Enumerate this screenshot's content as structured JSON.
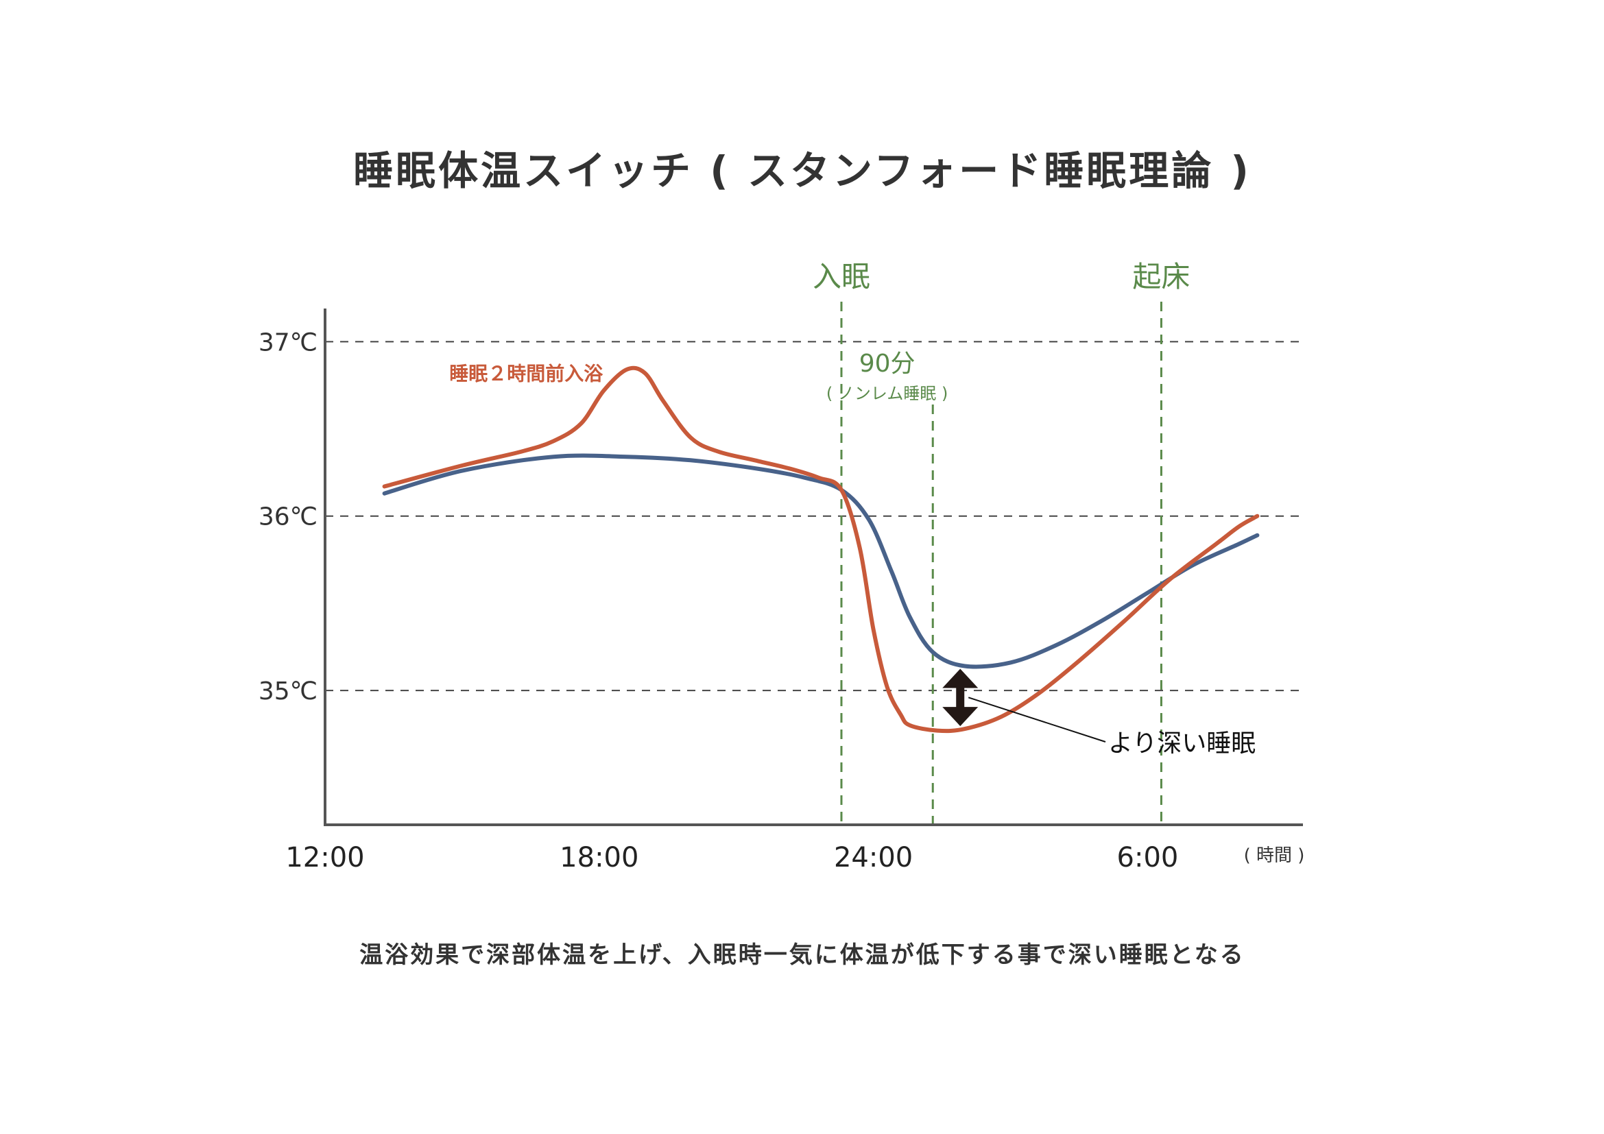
{
  "title": "睡眠体温スイッチ ( スタンフォード睡眠理論 )",
  "caption": "温浴効果で深部体温を上げ、入眠時一気に体温が低下する事で深い睡眠となる",
  "colors": {
    "baseline": "#48628a",
    "bath": "#c85a3a",
    "marker": "#5a8a4a",
    "axis": "#555555",
    "grid": "#444444",
    "arrow": "#231815"
  },
  "chart_data": {
    "type": "line",
    "x_unit": "( 時間 )",
    "x_ticks": [
      {
        "hour": 12,
        "label": "12:00"
      },
      {
        "hour": 18,
        "label": "18:00"
      },
      {
        "hour": 24,
        "label": "24:00"
      },
      {
        "hour": 30,
        "label": "6:00"
      }
    ],
    "y_ticks": [
      {
        "value": 35,
        "label": "35℃"
      },
      {
        "value": 36,
        "label": "36℃"
      },
      {
        "value": 37,
        "label": "37℃"
      }
    ],
    "xlim": [
      12,
      33.4
    ],
    "ylim": [
      34.23,
      37.19
    ],
    "grid": "horizontal dashed",
    "series": [
      {
        "key": "baseline",
        "name": "",
        "points": [
          [
            13.3,
            36.13
          ],
          [
            15.0,
            36.26
          ],
          [
            17.0,
            36.34
          ],
          [
            18.6,
            36.34
          ],
          [
            20.0,
            36.32
          ],
          [
            21.5,
            36.27
          ],
          [
            22.5,
            36.22
          ],
          [
            23.3,
            36.15
          ],
          [
            23.9,
            35.98
          ],
          [
            24.4,
            35.68
          ],
          [
            24.8,
            35.42
          ],
          [
            25.3,
            35.22
          ],
          [
            26.0,
            35.14
          ],
          [
            27.0,
            35.16
          ],
          [
            28.0,
            35.26
          ],
          [
            29.0,
            35.4
          ],
          [
            30.0,
            35.56
          ],
          [
            31.0,
            35.72
          ],
          [
            32.0,
            35.84
          ],
          [
            32.4,
            35.89
          ]
        ]
      },
      {
        "key": "bath",
        "name": "睡眠２時間前入浴",
        "label_at": [
          16.4,
          36.78
        ],
        "points": [
          [
            13.3,
            36.17
          ],
          [
            15.0,
            36.29
          ],
          [
            16.3,
            36.37
          ],
          [
            17.0,
            36.43
          ],
          [
            17.6,
            36.53
          ],
          [
            18.1,
            36.72
          ],
          [
            18.6,
            36.84
          ],
          [
            19.0,
            36.82
          ],
          [
            19.4,
            36.66
          ],
          [
            20.0,
            36.45
          ],
          [
            20.6,
            36.37
          ],
          [
            21.4,
            36.32
          ],
          [
            22.2,
            36.27
          ],
          [
            22.8,
            36.22
          ],
          [
            23.3,
            36.15
          ],
          [
            23.7,
            35.82
          ],
          [
            24.0,
            35.35
          ],
          [
            24.3,
            35.02
          ],
          [
            24.6,
            34.86
          ],
          [
            24.8,
            34.8
          ],
          [
            25.4,
            34.77
          ],
          [
            26.0,
            34.78
          ],
          [
            26.8,
            34.85
          ],
          [
            27.6,
            34.98
          ],
          [
            28.5,
            35.17
          ],
          [
            29.5,
            35.4
          ],
          [
            30.5,
            35.64
          ],
          [
            31.5,
            35.84
          ],
          [
            32.0,
            35.94
          ],
          [
            32.4,
            36.0
          ]
        ]
      }
    ],
    "vertical_markers": [
      {
        "hour": 23.3,
        "label": "入眠"
      },
      {
        "hour": 30.3,
        "label": "起床"
      },
      {
        "hour": 25.3,
        "label": ""
      }
    ],
    "annotations": {
      "interval": {
        "label": "90分",
        "sublabel": "( ノンレム睡眠 )",
        "hour": 24.3
      },
      "gap": {
        "label": "より深い睡眠",
        "hour": 25.9,
        "top": 35.14,
        "bottom": 34.78
      }
    }
  }
}
